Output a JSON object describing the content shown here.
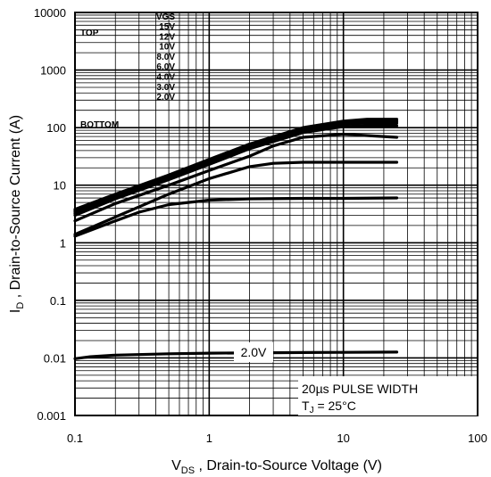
{
  "chart_data": {
    "type": "line",
    "xlabel": {
      "main": "V",
      "sub": "DS",
      "rest": " , Drain-to-Source Voltage (V)"
    },
    "ylabel": {
      "main": "I",
      "sub": "D",
      "rest": " , Drain-to-Source Current (A)"
    },
    "x_scale": "log",
    "y_scale": "log",
    "xlim": [
      0.1,
      100
    ],
    "ylim": [
      0.001,
      10000
    ],
    "grid": true,
    "x_ticks": [
      {
        "v": 0.1,
        "label": "0.1"
      },
      {
        "v": 1,
        "label": "1"
      },
      {
        "v": 10,
        "label": "10"
      },
      {
        "v": 100,
        "label": "100"
      }
    ],
    "y_ticks": [
      {
        "v": 0.001,
        "label": "0.001"
      },
      {
        "v": 0.01,
        "label": "0.01"
      },
      {
        "v": 0.1,
        "label": "0.1"
      },
      {
        "v": 1,
        "label": "1"
      },
      {
        "v": 10,
        "label": "10"
      },
      {
        "v": 100,
        "label": "100"
      },
      {
        "v": 1000,
        "label": "1000"
      },
      {
        "v": 10000,
        "label": "10000"
      }
    ],
    "legend": {
      "header": "VGS",
      "top_label": "TOP",
      "bottom_label": "BOTTOM",
      "entries": [
        "15V",
        "12V",
        "10V",
        "8.0V",
        "6.0V",
        "4.0V",
        "3.0V",
        "2.0V"
      ]
    },
    "annotations": {
      "curve_label": "2.0V",
      "pulse": "20µs PULSE WIDTH",
      "tj_main": "T",
      "tj_sub": "J",
      "tj_rest": " = 25°C"
    },
    "series": [
      {
        "name": "15V",
        "x": [
          0.1,
          0.2,
          0.5,
          1,
          2,
          5,
          10,
          15,
          25
        ],
        "y": [
          3.8,
          7,
          15,
          28,
          52,
          100,
          130,
          140,
          140
        ]
      },
      {
        "name": "12V",
        "x": [
          0.1,
          0.2,
          0.5,
          1,
          2,
          5,
          10,
          15,
          25
        ],
        "y": [
          3.6,
          6.8,
          14.5,
          27,
          50,
          97,
          125,
          133,
          133
        ]
      },
      {
        "name": "10V",
        "x": [
          0.1,
          0.2,
          0.5,
          1,
          2,
          5,
          10,
          15,
          25
        ],
        "y": [
          3.4,
          6.5,
          14,
          26,
          48,
          94,
          120,
          127,
          127
        ]
      },
      {
        "name": "8.0V",
        "x": [
          0.1,
          0.2,
          0.5,
          1,
          2,
          5,
          10,
          15,
          25
        ],
        "y": [
          3.2,
          6.2,
          13.5,
          25,
          46,
          90,
          115,
          120,
          120
        ]
      },
      {
        "name": "6.0V",
        "x": [
          0.1,
          0.2,
          0.5,
          1,
          2,
          5,
          10,
          15,
          25
        ],
        "y": [
          3.0,
          5.8,
          12.5,
          23,
          43,
          82,
          104,
          108,
          108
        ]
      },
      {
        "name": "4.0V",
        "x": [
          0.1,
          0.2,
          0.5,
          1,
          2,
          3,
          5,
          10,
          25
        ],
        "y": [
          2.4,
          4.8,
          10,
          18,
          32,
          48,
          68,
          77,
          68
        ]
      },
      {
        "name": "3.0V",
        "x": [
          0.1,
          0.2,
          0.5,
          1,
          2,
          3,
          5,
          10,
          25
        ],
        "y": [
          1.4,
          2.8,
          7,
          13,
          21,
          24,
          25,
          25,
          25
        ]
      },
      {
        "name": "2.0V low",
        "x": [
          0.1,
          0.2,
          0.3,
          0.5,
          1,
          2,
          5,
          10,
          25
        ],
        "y": [
          1.3,
          2.4,
          3.4,
          4.6,
          5.5,
          5.8,
          5.9,
          5.9,
          6.0
        ]
      },
      {
        "name": "2.0V",
        "x": [
          0.1,
          0.13,
          0.2,
          0.5,
          1,
          5,
          10,
          25
        ],
        "y": [
          0.0097,
          0.0105,
          0.0112,
          0.0118,
          0.0121,
          0.0124,
          0.0125,
          0.0126
        ]
      }
    ]
  }
}
